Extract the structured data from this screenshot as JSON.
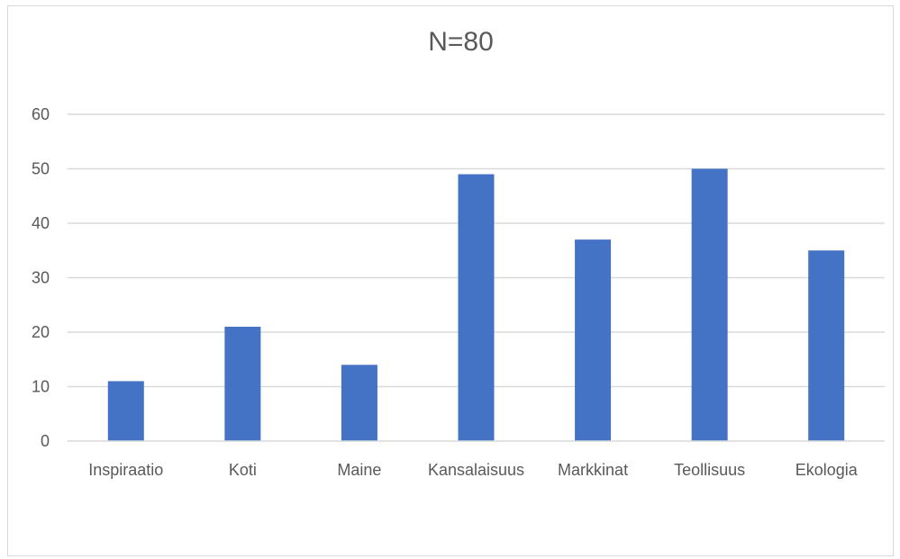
{
  "chart_data": {
    "type": "bar",
    "title": "N=80",
    "categories": [
      "Inspiraatio",
      "Koti",
      "Maine",
      "Kansalaisuus",
      "Markkinat",
      "Teollisuus",
      "Ekologia"
    ],
    "values": [
      11,
      21,
      14,
      49,
      37,
      50,
      35
    ],
    "yticks": [
      "0",
      "10",
      "20",
      "30",
      "40",
      "50",
      "60"
    ],
    "ylim": [
      0,
      60
    ],
    "grid": true,
    "legend": "none",
    "bar_color": "#4472c4",
    "grid_color": "#d9d9d9",
    "text_color": "#595959"
  }
}
